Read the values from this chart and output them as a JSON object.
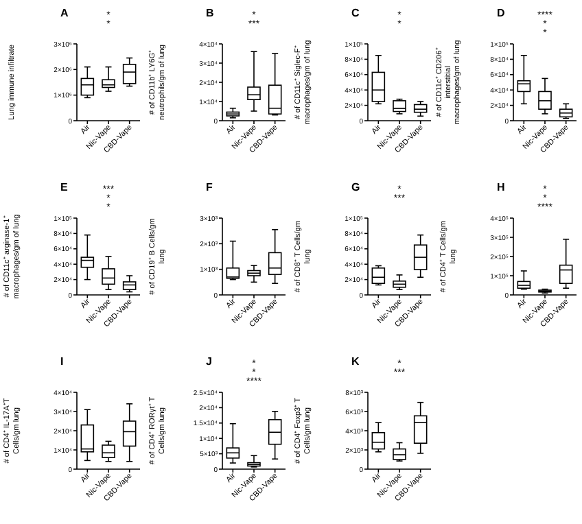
{
  "chart_data": [
    {
      "type": "box",
      "title": "A",
      "ylabel": "Lung immune infiltrate",
      "categories": [
        "Air",
        "Nic-Vape",
        "CBD-Vape"
      ],
      "ylim": [
        0,
        3000000
      ],
      "yticks": [
        {
          "value": 0,
          "label": "0"
        },
        {
          "value": 1000000,
          "label": "1×10⁶"
        },
        {
          "value": 2000000,
          "label": "2×10⁶"
        },
        {
          "value": 3000000,
          "label": "3×10⁶"
        }
      ],
      "annotations": [
        "*",
        "*"
      ],
      "boxes": [
        {
          "low": 900000,
          "q1": 1000000,
          "median": 1400000,
          "q3": 1650000,
          "high": 2100000
        },
        {
          "low": 1150000,
          "q1": 1300000,
          "median": 1400000,
          "q3": 1600000,
          "high": 2100000
        },
        {
          "low": 1350000,
          "q1": 1450000,
          "median": 1900000,
          "q3": 2200000,
          "high": 2450000
        }
      ]
    },
    {
      "type": "box",
      "title": "B",
      "ylabel": "# of CD11b⁺ LY6G⁺ neutrophils/gm of lung",
      "categories": [
        "Air",
        "Nic-Vape",
        "CBD-Vape"
      ],
      "ylim": [
        0,
        40000
      ],
      "yticks": [
        {
          "value": 0,
          "label": "0"
        },
        {
          "value": 10000,
          "label": "1×10⁴"
        },
        {
          "value": 20000,
          "label": "2×10⁴"
        },
        {
          "value": 30000,
          "label": "3×10⁴"
        },
        {
          "value": 40000,
          "label": "4×10⁴"
        }
      ],
      "annotations": [
        "*",
        "***"
      ],
      "boxes": [
        {
          "low": 1500,
          "q1": 2500,
          "median": 3500,
          "q3": 4500,
          "high": 6500
        },
        {
          "low": 5000,
          "q1": 11000,
          "median": 13500,
          "q3": 17500,
          "high": 36000
        },
        {
          "low": 3000,
          "q1": 3500,
          "median": 6500,
          "q3": 18500,
          "high": 35000
        }
      ]
    },
    {
      "type": "box",
      "title": "C",
      "ylabel": "# of CD11c⁺ Siglec-F⁺ macrophages/gm of lung",
      "categories": [
        "Air",
        "Nic-Vape",
        "CBD-Vape"
      ],
      "ylim": [
        0,
        100000
      ],
      "yticks": [
        {
          "value": 0,
          "label": "0"
        },
        {
          "value": 20000,
          "label": "2×10⁴"
        },
        {
          "value": 40000,
          "label": "4×10⁴"
        },
        {
          "value": 60000,
          "label": "6×10⁴"
        },
        {
          "value": 80000,
          "label": "8×10⁴"
        },
        {
          "value": 100000,
          "label": "1×10⁵"
        }
      ],
      "annotations": [
        "*",
        "*"
      ],
      "boxes": [
        {
          "low": 22000,
          "q1": 25000,
          "median": 40000,
          "q3": 63000,
          "high": 85000
        },
        {
          "low": 9000,
          "q1": 12000,
          "median": 16000,
          "q3": 26000,
          "high": 28000
        },
        {
          "low": 6000,
          "q1": 11000,
          "median": 15000,
          "q3": 21000,
          "high": 25000
        }
      ]
    },
    {
      "type": "box",
      "title": "D",
      "ylabel": "# of CD11c⁺ CD206⁺ interstitial macrophages/gm of lung",
      "categories": [
        "Air",
        "Nic-Vape",
        "CBD-Vape"
      ],
      "ylim": [
        0,
        100000
      ],
      "yticks": [
        {
          "value": 0,
          "label": "0"
        },
        {
          "value": 20000,
          "label": "2×10⁴"
        },
        {
          "value": 40000,
          "label": "4×10⁴"
        },
        {
          "value": 60000,
          "label": "6×10⁴"
        },
        {
          "value": 80000,
          "label": "8×10⁴"
        },
        {
          "value": 100000,
          "label": "1×10⁵"
        }
      ],
      "annotations": [
        "****",
        "*",
        "*"
      ],
      "boxes": [
        {
          "low": 22000,
          "q1": 38000,
          "median": 48000,
          "q3": 52000,
          "high": 85000
        },
        {
          "low": 9000,
          "q1": 15000,
          "median": 26000,
          "q3": 38000,
          "high": 55000
        },
        {
          "low": 3000,
          "q1": 5000,
          "median": 10000,
          "q3": 15000,
          "high": 22000
        }
      ]
    },
    {
      "type": "box",
      "title": "E",
      "ylabel": "# of CD11c⁺ arginase-1⁺ macrophages/gm of lung",
      "categories": [
        "Air",
        "Nic-Vape",
        "CBD-Vape"
      ],
      "ylim": [
        0,
        100000
      ],
      "yticks": [
        {
          "value": 0,
          "label": "0"
        },
        {
          "value": 20000,
          "label": "2×10⁴"
        },
        {
          "value": 40000,
          "label": "4×10⁴"
        },
        {
          "value": 60000,
          "label": "6×10⁴"
        },
        {
          "value": 80000,
          "label": "8×10⁴"
        },
        {
          "value": 100000,
          "label": "1×10⁵"
        }
      ],
      "annotations": [
        "***",
        "*",
        "*"
      ],
      "boxes": [
        {
          "low": 20000,
          "q1": 36000,
          "median": 45000,
          "q3": 49000,
          "high": 78000
        },
        {
          "low": 7000,
          "q1": 14000,
          "median": 22000,
          "q3": 34000,
          "high": 50000
        },
        {
          "low": 4000,
          "q1": 7000,
          "median": 13000,
          "q3": 17000,
          "high": 25000
        }
      ]
    },
    {
      "type": "box",
      "title": "F",
      "ylabel": "# of CD19⁺ B Cells/gm lung",
      "categories": [
        "Air",
        "Nic-Vape",
        "CBD-Vape"
      ],
      "ylim": [
        0,
        3000
      ],
      "yticks": [
        {
          "value": 0,
          "label": "0"
        },
        {
          "value": 1000,
          "label": "1×10³"
        },
        {
          "value": 2000,
          "label": "2×10³"
        },
        {
          "value": 3000,
          "label": "3×10³"
        }
      ],
      "boxes": [
        {
          "low": 600,
          "q1": 650,
          "median": 700,
          "q3": 1050,
          "high": 2100
        },
        {
          "low": 500,
          "q1": 750,
          "median": 850,
          "q3": 950,
          "high": 1150
        },
        {
          "low": 450,
          "q1": 800,
          "median": 1050,
          "q3": 1650,
          "high": 2550
        }
      ]
    },
    {
      "type": "box",
      "title": "G",
      "ylabel": "# of CD8⁺ T Cells/gm lung",
      "categories": [
        "Air",
        "Nic-Vape",
        "CBD-Vape"
      ],
      "ylim": [
        0,
        100000
      ],
      "yticks": [
        {
          "value": 0,
          "label": "0"
        },
        {
          "value": 20000,
          "label": "2×10⁴"
        },
        {
          "value": 40000,
          "label": "4×10⁴"
        },
        {
          "value": 60000,
          "label": "6×10⁴"
        },
        {
          "value": 80000,
          "label": "8×10⁴"
        },
        {
          "value": 100000,
          "label": "1×10⁵"
        }
      ],
      "annotations": [
        "*",
        "***"
      ],
      "boxes": [
        {
          "low": 13000,
          "q1": 15000,
          "median": 23000,
          "q3": 35000,
          "high": 38000
        },
        {
          "low": 7000,
          "q1": 10000,
          "median": 14000,
          "q3": 18000,
          "high": 26000
        },
        {
          "low": 23000,
          "q1": 33000,
          "median": 49000,
          "q3": 65000,
          "high": 78000
        }
      ]
    },
    {
      "type": "box",
      "title": "H",
      "ylabel": "# of CD4⁺ T Cells/gm lung",
      "categories": [
        "Air",
        "Nic-Vape",
        "CBD-Vape"
      ],
      "ylim": [
        0,
        400000
      ],
      "yticks": [
        {
          "value": 0,
          "label": "0"
        },
        {
          "value": 100000,
          "label": "1×10⁵"
        },
        {
          "value": 200000,
          "label": "2×10⁵"
        },
        {
          "value": 300000,
          "label": "3×10⁵"
        },
        {
          "value": 400000,
          "label": "4×10⁵"
        }
      ],
      "annotations": [
        "*",
        "*",
        "****"
      ],
      "boxes": [
        {
          "low": 30000,
          "q1": 35000,
          "median": 50000,
          "q3": 70000,
          "high": 125000
        },
        {
          "low": 10000,
          "q1": 15000,
          "median": 20000,
          "q3": 25000,
          "high": 30000
        },
        {
          "low": 35000,
          "q1": 60000,
          "median": 130000,
          "q3": 155000,
          "high": 290000
        }
      ]
    },
    {
      "type": "box",
      "title": "I",
      "ylabel": "# of CD4⁺ IL-17A⁺T Cells/gm lung",
      "categories": [
        "Air",
        "Nic-Vape",
        "CBD-Vape"
      ],
      "ylim": [
        0,
        40000
      ],
      "yticks": [
        {
          "value": 0,
          "label": "0"
        },
        {
          "value": 10000,
          "label": "1×10⁴"
        },
        {
          "value": 20000,
          "label": "2×10⁴"
        },
        {
          "value": 30000,
          "label": "3×10⁴"
        },
        {
          "value": 40000,
          "label": "4×10⁴"
        }
      ],
      "boxes": [
        {
          "low": 4500,
          "q1": 9000,
          "median": 10500,
          "q3": 23000,
          "high": 31000
        },
        {
          "low": 4000,
          "q1": 6000,
          "median": 8500,
          "q3": 12500,
          "high": 14500
        },
        {
          "low": 4000,
          "q1": 12000,
          "median": 19500,
          "q3": 25000,
          "high": 34000
        }
      ]
    },
    {
      "type": "box",
      "title": "J",
      "ylabel": "# of CD4⁺ RORγt⁺ T Cells/gm lung",
      "categories": [
        "Air",
        "Nic-Vape",
        "CBD-Vape"
      ],
      "ylim": [
        0,
        25000
      ],
      "yticks": [
        {
          "value": 0,
          "label": "0"
        },
        {
          "value": 5000,
          "label": "5×10³"
        },
        {
          "value": 10000,
          "label": "1×10⁴"
        },
        {
          "value": 15000,
          "label": "1.5×10⁴"
        },
        {
          "value": 20000,
          "label": "2×10⁴"
        },
        {
          "value": 25000,
          "label": "2.5×10⁴"
        }
      ],
      "annotations": [
        "*",
        "*",
        "****"
      ],
      "boxes": [
        {
          "low": 2000,
          "q1": 3600,
          "median": 5300,
          "q3": 6900,
          "high": 14800
        },
        {
          "low": 700,
          "q1": 1000,
          "median": 1500,
          "q3": 2100,
          "high": 4400
        },
        {
          "low": 3300,
          "q1": 8100,
          "median": 12000,
          "q3": 16100,
          "high": 18800
        }
      ]
    },
    {
      "type": "box",
      "title": "K",
      "ylabel": "# of CD4⁺ Foxp3⁺ T Cells/gm lung",
      "categories": [
        "Air",
        "Nic-Vape",
        "CBD-Vape"
      ],
      "ylim": [
        0,
        8000
      ],
      "yticks": [
        {
          "value": 0,
          "label": "0"
        },
        {
          "value": 2000,
          "label": "2×10³"
        },
        {
          "value": 4000,
          "label": "4×10³"
        },
        {
          "value": 6000,
          "label": "6×10³"
        },
        {
          "value": 8000,
          "label": "8×10³"
        }
      ],
      "annotations": [
        "*",
        "***"
      ],
      "boxes": [
        {
          "low": 1800,
          "q1": 2100,
          "median": 2800,
          "q3": 3800,
          "high": 4850
        },
        {
          "low": 850,
          "q1": 1000,
          "median": 1500,
          "q3": 2100,
          "high": 2750
        },
        {
          "low": 1650,
          "q1": 2700,
          "median": 4850,
          "q3": 5550,
          "high": 6950
        }
      ]
    }
  ]
}
